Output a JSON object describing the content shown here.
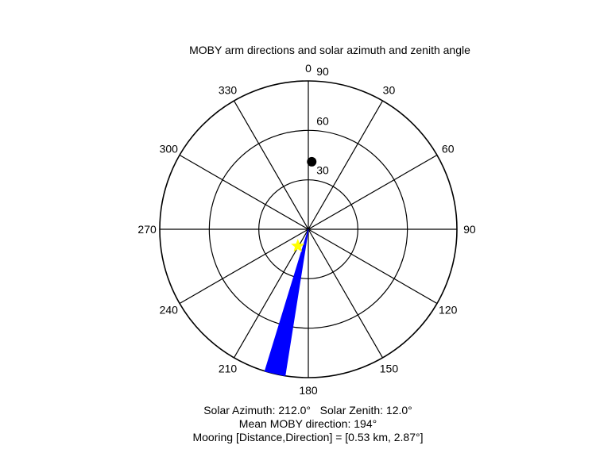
{
  "chart_data": {
    "type": "polar",
    "title": "MOBY arm directions and solar azimuth and zenith angle",
    "theta_ticks": [
      "0",
      "30",
      "60",
      "90",
      "120",
      "150",
      "180",
      "210",
      "240",
      "270",
      "300",
      "330"
    ],
    "radial_ticks": [
      "30",
      "60",
      "90"
    ],
    "radial_max": 90,
    "moby_arm": {
      "from_azimuth": 189,
      "to_azimuth": 197,
      "length": 90,
      "color": "#0000ff"
    },
    "points": [
      {
        "name": "sun",
        "azimuth": 212.0,
        "zenith": 12.0,
        "color": "#ffff00",
        "marker": "star"
      },
      {
        "name": "mooring",
        "azimuth": 2.87,
        "zenith": 41,
        "color": "#000000",
        "marker": "dot"
      }
    ],
    "captions": [
      "Solar Azimuth: 212.0°   Solar Zenith: 12.0°",
      "Mean MOBY direction: 194°",
      "Mooring [Distance,Direction] = [0.53 km, 2.87°]"
    ]
  }
}
